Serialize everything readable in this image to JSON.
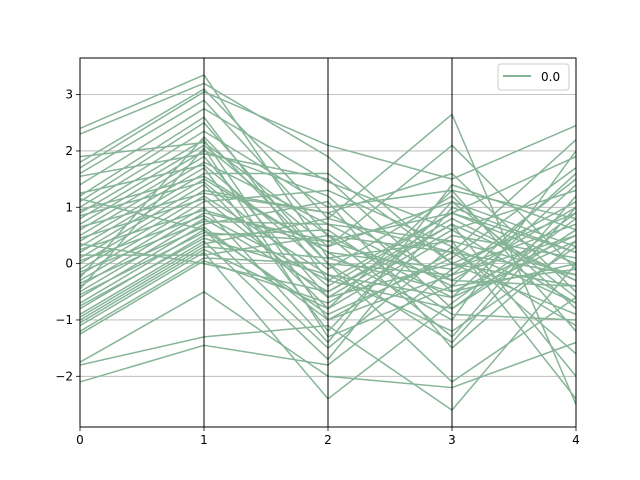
{
  "chart_data": {
    "type": "line",
    "subtype": "parallel-coordinates",
    "title": "",
    "xlabel": "",
    "ylabel": "",
    "x": [
      0,
      1,
      2,
      3,
      4
    ],
    "xticks": [
      "0",
      "1",
      "2",
      "3",
      "4"
    ],
    "yticks": [
      3,
      2,
      1,
      0,
      -1,
      -2
    ],
    "ytick_labels": [
      "3",
      "2",
      "1",
      "0",
      "−1",
      "−2"
    ],
    "xlim": [
      0,
      4
    ],
    "ylim": [
      -2.9,
      3.65
    ],
    "grid": "horizontal",
    "legend_position": "top-right",
    "series_color": "#86b497",
    "legend": [
      {
        "label": "0.0",
        "color": "#86b497"
      }
    ],
    "lines": [
      [
        2.4,
        3.35,
        0.1,
        -0.5,
        0.0
      ],
      [
        2.3,
        3.2,
        1.9,
        0.0,
        -0.4
      ],
      [
        1.8,
        3.1,
        0.8,
        2.65,
        -2.5
      ],
      [
        1.7,
        3.05,
        2.1,
        1.5,
        2.45
      ],
      [
        1.6,
        2.9,
        0.5,
        -1.3,
        1.2
      ],
      [
        1.4,
        2.75,
        1.45,
        0.6,
        -0.7
      ],
      [
        1.2,
        2.6,
        -0.3,
        0.9,
        1.9
      ],
      [
        1.1,
        2.5,
        0.0,
        -0.2,
        0.5
      ],
      [
        1.0,
        2.35,
        1.0,
        1.3,
        -1.2
      ],
      [
        0.9,
        2.2,
        -1.0,
        0.2,
        2.2
      ],
      [
        0.8,
        2.1,
        0.3,
        2.1,
        -0.1
      ],
      [
        0.7,
        2.0,
        1.2,
        -0.8,
        0.8
      ],
      [
        0.6,
        1.9,
        -0.6,
        0.7,
        -2.0
      ],
      [
        0.5,
        1.8,
        0.7,
        -0.4,
        1.6
      ],
      [
        0.4,
        1.7,
        -1.2,
        1.1,
        0.3
      ],
      [
        0.3,
        1.6,
        1.6,
        0.0,
        -0.9
      ],
      [
        0.2,
        1.5,
        0.2,
        -1.0,
        2.0
      ],
      [
        0.1,
        1.4,
        -0.8,
        0.5,
        0.1
      ],
      [
        0.0,
        1.3,
        0.9,
        1.6,
        -0.5
      ],
      [
        -0.1,
        1.2,
        -0.2,
        -0.6,
        1.4
      ],
      [
        -0.2,
        1.1,
        1.3,
        0.3,
        -1.6
      ],
      [
        -0.3,
        1.0,
        -1.4,
        1.4,
        0.6
      ],
      [
        -0.4,
        0.9,
        0.4,
        -0.3,
        1.0
      ],
      [
        -0.5,
        0.8,
        -0.5,
        0.8,
        -0.3
      ],
      [
        -0.6,
        0.7,
        1.1,
        -1.5,
        0.4
      ],
      [
        -0.7,
        0.6,
        -0.9,
        0.1,
        1.7
      ],
      [
        -0.8,
        0.5,
        0.6,
        -0.9,
        -1.0
      ],
      [
        -0.9,
        0.4,
        -1.7,
        1.0,
        0.2
      ],
      [
        -1.0,
        0.3,
        0.1,
        0.4,
        -2.4
      ],
      [
        -1.1,
        0.2,
        -2.4,
        -0.7,
        0.9
      ],
      [
        -1.2,
        0.1,
        0.0,
        -2.1,
        -0.6
      ],
      [
        -1.25,
        0.05,
        -0.7,
        0.6,
        1.3
      ],
      [
        -1.75,
        -0.5,
        -2.0,
        -2.2,
        -1.4
      ],
      [
        -1.8,
        -1.3,
        -1.1,
        -2.6,
        0.0
      ],
      [
        -2.1,
        -1.45,
        -1.8,
        -0.1,
        0.7
      ],
      [
        1.9,
        2.15,
        0.5,
        0.2,
        -0.2
      ],
      [
        1.55,
        1.95,
        1.5,
        -0.5,
        0.5
      ],
      [
        1.25,
        1.75,
        -0.1,
        1.2,
        -0.8
      ],
      [
        0.95,
        1.55,
        0.2,
        -0.1,
        1.1
      ],
      [
        0.85,
        1.45,
        -0.4,
        0.9,
        0.2
      ],
      [
        0.65,
        1.25,
        0.9,
        -0.3,
        -0.4
      ],
      [
        0.45,
        1.15,
        -0.6,
        0.0,
        0.9
      ],
      [
        0.25,
        0.95,
        0.3,
        1.1,
        -0.6
      ],
      [
        0.05,
        0.85,
        -0.3,
        -0.8,
        0.6
      ],
      [
        -0.15,
        0.75,
        0.7,
        0.4,
        -0.2
      ],
      [
        -0.35,
        0.65,
        -1.0,
        -0.2,
        1.5
      ],
      [
        -0.55,
        0.55,
        0.4,
        0.9,
        0.0
      ],
      [
        -0.75,
        0.45,
        -0.2,
        -1.2,
        0.3
      ],
      [
        -0.95,
        0.35,
        0.8,
        0.2,
        -1.1
      ],
      [
        -1.05,
        0.25,
        -0.8,
        1.3,
        0.8
      ],
      [
        -0.45,
        2.05,
        -1.3,
        -0.4,
        -0.1
      ],
      [
        0.15,
        0.15,
        0.5,
        -0.6,
        0.4
      ],
      [
        0.35,
        0.0,
        -0.5,
        0.7,
        -0.3
      ],
      [
        -0.25,
        2.25,
        0.0,
        -1.4,
        1.0
      ],
      [
        1.15,
        0.6,
        -1.5,
        0.3,
        -0.7
      ]
    ]
  }
}
